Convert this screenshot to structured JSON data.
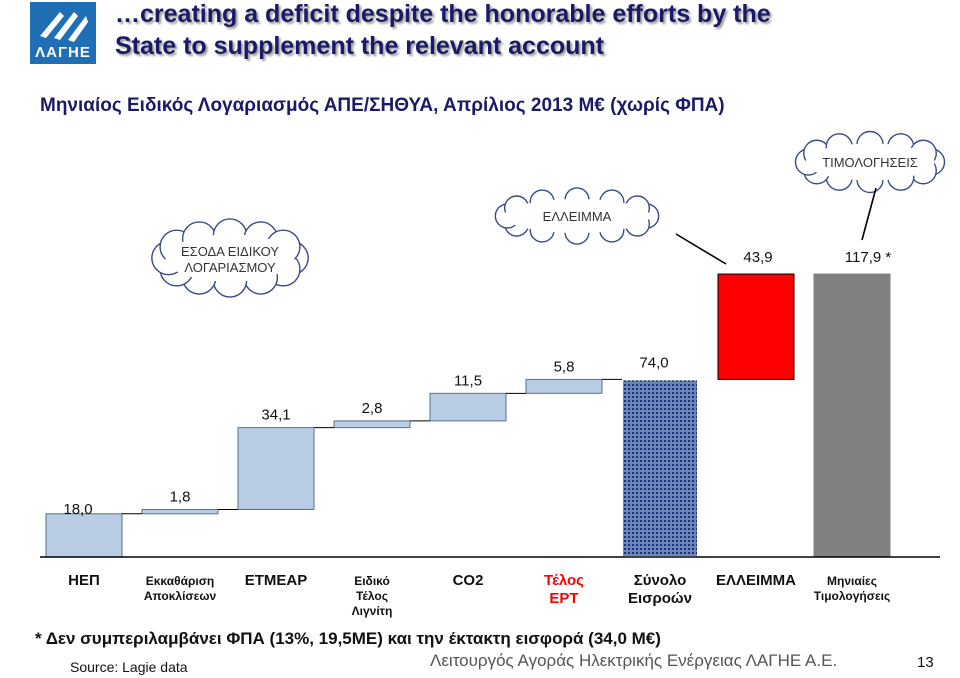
{
  "header": {
    "logo_text": "ΛΑΓΗΕ",
    "title_line1": "…creating a deficit despite the honorable efforts by the",
    "title_line2": "State to supplement the relevant account",
    "subtitle": "Μηνιαίος Ειδικός Λογαριασμός ΑΠΕ/ΣΗΘΥΑ, Απρίλιος 2013  Μ€  (χωρίς ΦΠΑ)"
  },
  "chart_data": {
    "type": "bar",
    "subtype": "waterfall",
    "categories": [
      "ΗΕΠ",
      "Εκκαθάριση Αποκλίσεων",
      "ΕΤΜΕΑΡ",
      "Ειδικό Τέλος Λιγνίτη",
      "CO2",
      "Τέλος ΕΡΤ",
      "Σύνολο Εισροών",
      "ΕΛΛΕΙΜΜΑ",
      "Μηνιαίες Τιμολογήσεις"
    ],
    "category_lines": [
      [
        "ΗΕΠ"
      ],
      [
        "Εκκαθάριση",
        "Αποκλίσεων"
      ],
      [
        "ΕΤΜΕΑΡ"
      ],
      [
        "Ειδικό",
        "Τέλος",
        "Λιγνίτη"
      ],
      [
        "CO2"
      ],
      [
        "Τέλος",
        "ΕΡΤ"
      ],
      [
        "Σύνολο",
        "Εισροών"
      ],
      [
        "ΕΛΛΕΙΜΜΑ"
      ],
      [
        "Μηνιαίες",
        "Τιμολογήσεις"
      ]
    ],
    "values": [
      18.0,
      1.8,
      34.1,
      2.8,
      11.5,
      5.8,
      74.0,
      43.9,
      117.9
    ],
    "value_labels": [
      "18,0",
      "1,8",
      "34,1",
      "2,8",
      "11,5",
      "5,8",
      "74,0",
      "43,9",
      "117,9 *"
    ],
    "bar_kind": [
      "step",
      "step",
      "step",
      "step",
      "step",
      "step",
      "total",
      "deficit",
      "total"
    ],
    "colors": {
      "step_fill": "#b9cde5",
      "step_stroke": "#5a6f8c",
      "total_fill": "#6b86b8",
      "deficit": "#ff0000",
      "invoicing": "#808080",
      "ert_label": "#ff0000",
      "axis": "#000000"
    },
    "ylim": [
      0,
      120
    ],
    "grid": false,
    "legend": "none",
    "callouts": [
      "ΤΙΜΟΛΟΓΗΣΕΙΣ",
      "ΕΛΛΕΙΜΜΑ",
      "ΕΣΟΔΑ ΕΙΔΙΚΟΥ ΛΟΓΑΡΙΑΣΜΟΥ"
    ]
  },
  "footer": {
    "note": "* Δεν συμπεριλαμβάνει ΦΠΑ (13%, 19,5ΜΕ) και την έκτακτη εισφορά (34,0 Μ€)",
    "source": "Source: Lagie data",
    "org": "Λειτουργός Αγοράς Ηλεκτρικής Ενέργειας ΛΑΓΗΕ Α.Ε.",
    "page_number": "13"
  }
}
